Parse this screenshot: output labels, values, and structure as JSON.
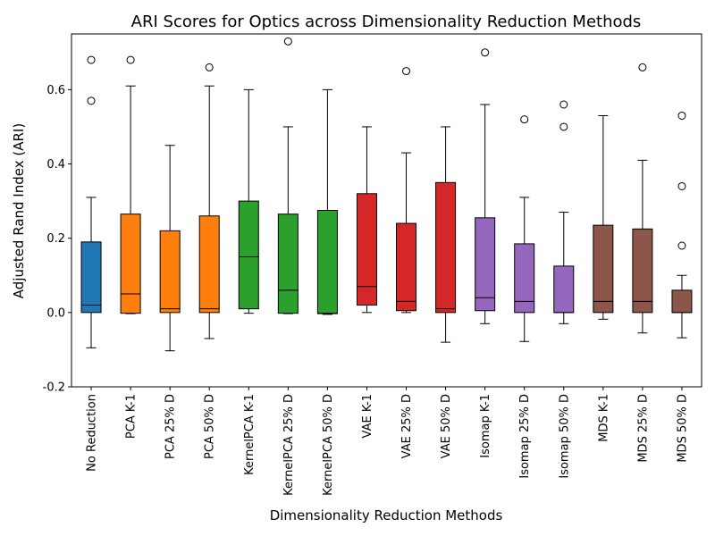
{
  "chart_data": {
    "type": "boxplot",
    "title": "ARI Scores for Optics across Dimensionality Reduction Methods",
    "xlabel": "Dimensionality Reduction Methods",
    "ylabel": "Adjusted Rand Index (ARI)",
    "ylim": [
      -0.2,
      0.75
    ],
    "yticks": [
      -0.2,
      0.0,
      0.2,
      0.4,
      0.6
    ],
    "grid": false,
    "categories": [
      "No Reduction",
      "PCA K-1",
      "PCA 25% D",
      "PCA 50% D",
      "KernelPCA K-1",
      "KernelPCA 25% D",
      "KernelPCA 50% D",
      "VAE K-1",
      "VAE 25% D",
      "VAE 50% D",
      "Isomap K-1",
      "Isomap 25% D",
      "Isomap 50% D",
      "MDS K-1",
      "MDS 25% D",
      "MDS 50% D"
    ],
    "boxes": [
      {
        "whisker_low": -0.095,
        "q1": 0.0,
        "median": 0.02,
        "q3": 0.19,
        "whisker_high": 0.31,
        "outliers": [
          0.57,
          0.68
        ],
        "color": "#1f77b4"
      },
      {
        "whisker_low": -0.003,
        "q1": -0.002,
        "median": 0.05,
        "q3": 0.265,
        "whisker_high": 0.61,
        "outliers": [
          0.68
        ],
        "color": "#ff7f0e"
      },
      {
        "whisker_low": -0.103,
        "q1": 0.0,
        "median": 0.01,
        "q3": 0.22,
        "whisker_high": 0.45,
        "outliers": [],
        "color": "#ff7f0e"
      },
      {
        "whisker_low": -0.07,
        "q1": 0.0,
        "median": 0.01,
        "q3": 0.26,
        "whisker_high": 0.61,
        "outliers": [
          0.66
        ],
        "color": "#ff7f0e"
      },
      {
        "whisker_low": -0.002,
        "q1": 0.01,
        "median": 0.15,
        "q3": 0.3,
        "whisker_high": 0.6,
        "outliers": [],
        "color": "#2ca02c"
      },
      {
        "whisker_low": -0.003,
        "q1": -0.002,
        "median": 0.06,
        "q3": 0.265,
        "whisker_high": 0.5,
        "outliers": [
          0.73
        ],
        "color": "#2ca02c"
      },
      {
        "whisker_low": -0.005,
        "q1": -0.003,
        "median": -0.002,
        "q3": 0.275,
        "whisker_high": 0.6,
        "outliers": [],
        "color": "#2ca02c"
      },
      {
        "whisker_low": 0.0,
        "q1": 0.02,
        "median": 0.07,
        "q3": 0.32,
        "whisker_high": 0.5,
        "outliers": [],
        "color": "#d62728"
      },
      {
        "whisker_low": 0.0,
        "q1": 0.005,
        "median": 0.03,
        "q3": 0.24,
        "whisker_high": 0.43,
        "outliers": [
          0.65
        ],
        "color": "#d62728"
      },
      {
        "whisker_low": -0.08,
        "q1": 0.0,
        "median": 0.01,
        "q3": 0.35,
        "whisker_high": 0.5,
        "outliers": [],
        "color": "#d62728"
      },
      {
        "whisker_low": -0.03,
        "q1": 0.005,
        "median": 0.04,
        "q3": 0.255,
        "whisker_high": 0.56,
        "outliers": [
          0.7
        ],
        "color": "#9467bd"
      },
      {
        "whisker_low": -0.078,
        "q1": 0.0,
        "median": 0.03,
        "q3": 0.185,
        "whisker_high": 0.31,
        "outliers": [
          0.52
        ],
        "color": "#9467bd"
      },
      {
        "whisker_low": -0.03,
        "q1": 0.0,
        "median": 0.0,
        "q3": 0.125,
        "whisker_high": 0.27,
        "outliers": [
          0.5,
          0.56
        ],
        "color": "#9467bd"
      },
      {
        "whisker_low": -0.018,
        "q1": 0.0,
        "median": 0.03,
        "q3": 0.235,
        "whisker_high": 0.53,
        "outliers": [],
        "color": "#8c564b"
      },
      {
        "whisker_low": -0.055,
        "q1": 0.0,
        "median": 0.03,
        "q3": 0.225,
        "whisker_high": 0.41,
        "outliers": [
          0.66
        ],
        "color": "#8c564b"
      },
      {
        "whisker_low": -0.068,
        "q1": 0.0,
        "median": 0.0,
        "q3": 0.06,
        "whisker_high": 0.1,
        "outliers": [
          0.18,
          0.34,
          0.53
        ],
        "color": "#8c564b"
      }
    ]
  }
}
